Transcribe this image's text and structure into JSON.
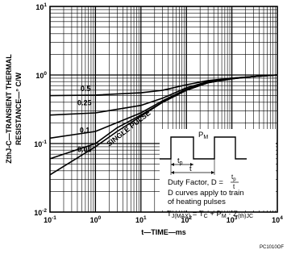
{
  "chart_data": {
    "type": "line",
    "x_scale": "log",
    "y_scale": "log",
    "xlim": [
      0.1,
      10000
    ],
    "ylim": [
      0.01,
      10
    ],
    "grid": true,
    "xlabel": "t—TIME—ms",
    "ylabel_line1": "ZthJ-C—TRANSIENT THERMAL",
    "ylabel_line2": "RESISTANCE—° C/W",
    "x_ticks": [
      {
        "value": 0.1,
        "base": "10",
        "exp": "-1"
      },
      {
        "value": 1,
        "base": "10",
        "exp": "0"
      },
      {
        "value": 10,
        "base": "10",
        "exp": "1"
      },
      {
        "value": 100,
        "base": "10",
        "exp": "2"
      },
      {
        "value": 1000,
        "base": "10",
        "exp": "3"
      },
      {
        "value": 10000,
        "base": "10",
        "exp": "4"
      }
    ],
    "y_ticks": [
      {
        "value": 0.01,
        "base": "10",
        "exp": "-2"
      },
      {
        "value": 0.1,
        "base": "10",
        "exp": "-1"
      },
      {
        "value": 1,
        "base": "10",
        "exp": "0"
      },
      {
        "value": 10,
        "base": "10",
        "exp": "1"
      }
    ],
    "series": [
      {
        "name": "0.5",
        "label_at": [
          0.47,
          0.58
        ],
        "points": [
          [
            0.1,
            0.5
          ],
          [
            1,
            0.51
          ],
          [
            10,
            0.55
          ],
          [
            30,
            0.6
          ],
          [
            100,
            0.72
          ],
          [
            300,
            0.83
          ],
          [
            1000,
            0.9
          ],
          [
            3000,
            0.95
          ],
          [
            10000,
            1.0
          ]
        ]
      },
      {
        "name": "0.25",
        "label_at": [
          0.4,
          0.36
        ],
        "points": [
          [
            0.1,
            0.26
          ],
          [
            1,
            0.28
          ],
          [
            10,
            0.36
          ],
          [
            30,
            0.46
          ],
          [
            100,
            0.65
          ],
          [
            300,
            0.8
          ],
          [
            1000,
            0.9
          ],
          [
            3000,
            0.95
          ],
          [
            10000,
            1.0
          ]
        ]
      },
      {
        "name": "0.1",
        "label_at": [
          0.45,
          0.145
        ],
        "points": [
          [
            0.1,
            0.12
          ],
          [
            1,
            0.15
          ],
          [
            10,
            0.28
          ],
          [
            30,
            0.42
          ],
          [
            100,
            0.62
          ],
          [
            300,
            0.78
          ],
          [
            1000,
            0.89
          ],
          [
            3000,
            0.95
          ],
          [
            10000,
            1.0
          ]
        ]
      },
      {
        "name": "0.05",
        "label_at": [
          0.4,
          0.075
        ],
        "points": [
          [
            0.1,
            0.06
          ],
          [
            1,
            0.1
          ],
          [
            3,
            0.17
          ],
          [
            10,
            0.26
          ],
          [
            30,
            0.4
          ],
          [
            100,
            0.6
          ],
          [
            300,
            0.77
          ],
          [
            1000,
            0.88
          ],
          [
            3000,
            0.95
          ],
          [
            10000,
            1.0
          ]
        ]
      },
      {
        "name": "SINGLE PULSE",
        "label_at": [
          2,
          0.09
        ],
        "label_angle": -38,
        "points": [
          [
            0.1,
            0.035
          ],
          [
            1,
            0.09
          ],
          [
            3,
            0.15
          ],
          [
            10,
            0.25
          ],
          [
            30,
            0.4
          ],
          [
            100,
            0.6
          ],
          [
            300,
            0.77
          ],
          [
            1000,
            0.88
          ],
          [
            3000,
            0.95
          ],
          [
            10000,
            1.0
          ]
        ]
      }
    ],
    "annotations": {
      "pm": "P",
      "pm_sub": "M",
      "tp": "t",
      "tp_sub": "p",
      "t": "t",
      "duty_prefix": "Duty Factor, D =",
      "duty_num": "t",
      "duty_num_sub": "p",
      "duty_den": "t",
      "line_curves": "D curves apply to train",
      "line_pulses": "of heating pulses",
      "tj_main": "T",
      "tj_sub": "J(MAX)",
      "tj_eq": "= T",
      "tc_sub": "C",
      "plus": "+ P",
      "pm2_sub": "M",
      "dot": "· Z",
      "zth_sub": "(th)JC"
    },
    "figure_code": "PC1010OF"
  }
}
